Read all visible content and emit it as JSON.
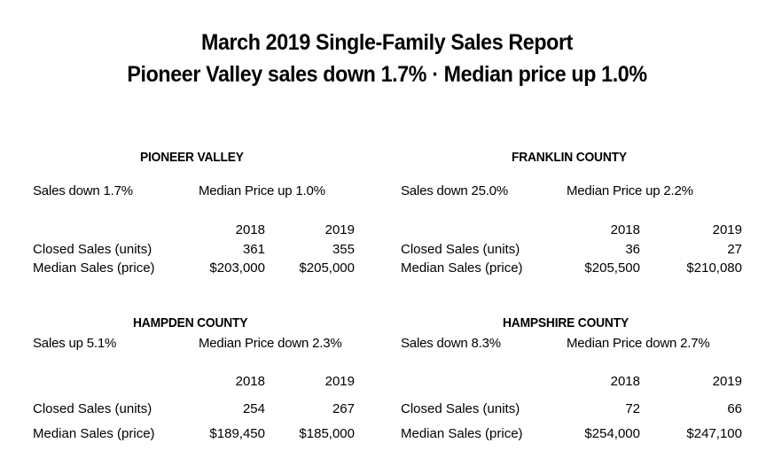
{
  "report": {
    "title_line1": "March 2019 Single-Family Sales Report",
    "title_line2": "Pioneer Valley sales down 1.7% · Median price up 1.0%"
  },
  "regions": [
    {
      "name": "PIONEER VALLEY",
      "sales_change": "Sales down 1.7%",
      "price_change": "Median Price up 1.0%",
      "year_a": "2018",
      "year_b": "2019",
      "row1_label": "Closed Sales (units)",
      "row1_a": "361",
      "row1_b": "355",
      "row2_label": "Median Sales (price)",
      "row2_a": "$203,000",
      "row2_b": "$205,000"
    },
    {
      "name": "FRANKLIN COUNTY",
      "sales_change": "Sales down 25.0%",
      "price_change": "Median Price up 2.2%",
      "year_a": "2018",
      "year_b": "2019",
      "row1_label": "Closed Sales (units)",
      "row1_a": "36",
      "row1_b": "27",
      "row2_label": "Median Sales (price)",
      "row2_a": "$205,500",
      "row2_b": "$210,080"
    },
    {
      "name": "HAMPDEN COUNTY",
      "sales_change": "Sales up 5.1%",
      "price_change": "Median Price down 2.3%",
      "year_a": "2018",
      "year_b": "2019",
      "row1_label": "Closed Sales (units)",
      "row1_a": "254",
      "row1_b": "267",
      "row2_label": "Median Sales (price)",
      "row2_a": "$189,450",
      "row2_b": "$185,000"
    },
    {
      "name": "HAMPSHIRE COUNTY",
      "sales_change": "Sales down 8.3%",
      "price_change": "Median Price down 2.7%",
      "year_a": "2018",
      "year_b": "2019",
      "row1_label": "Closed Sales (units)",
      "row1_a": "72",
      "row1_b": "66",
      "row2_label": "Median Sales (price)",
      "row2_a": "$254,000",
      "row2_b": "$247,100"
    }
  ]
}
